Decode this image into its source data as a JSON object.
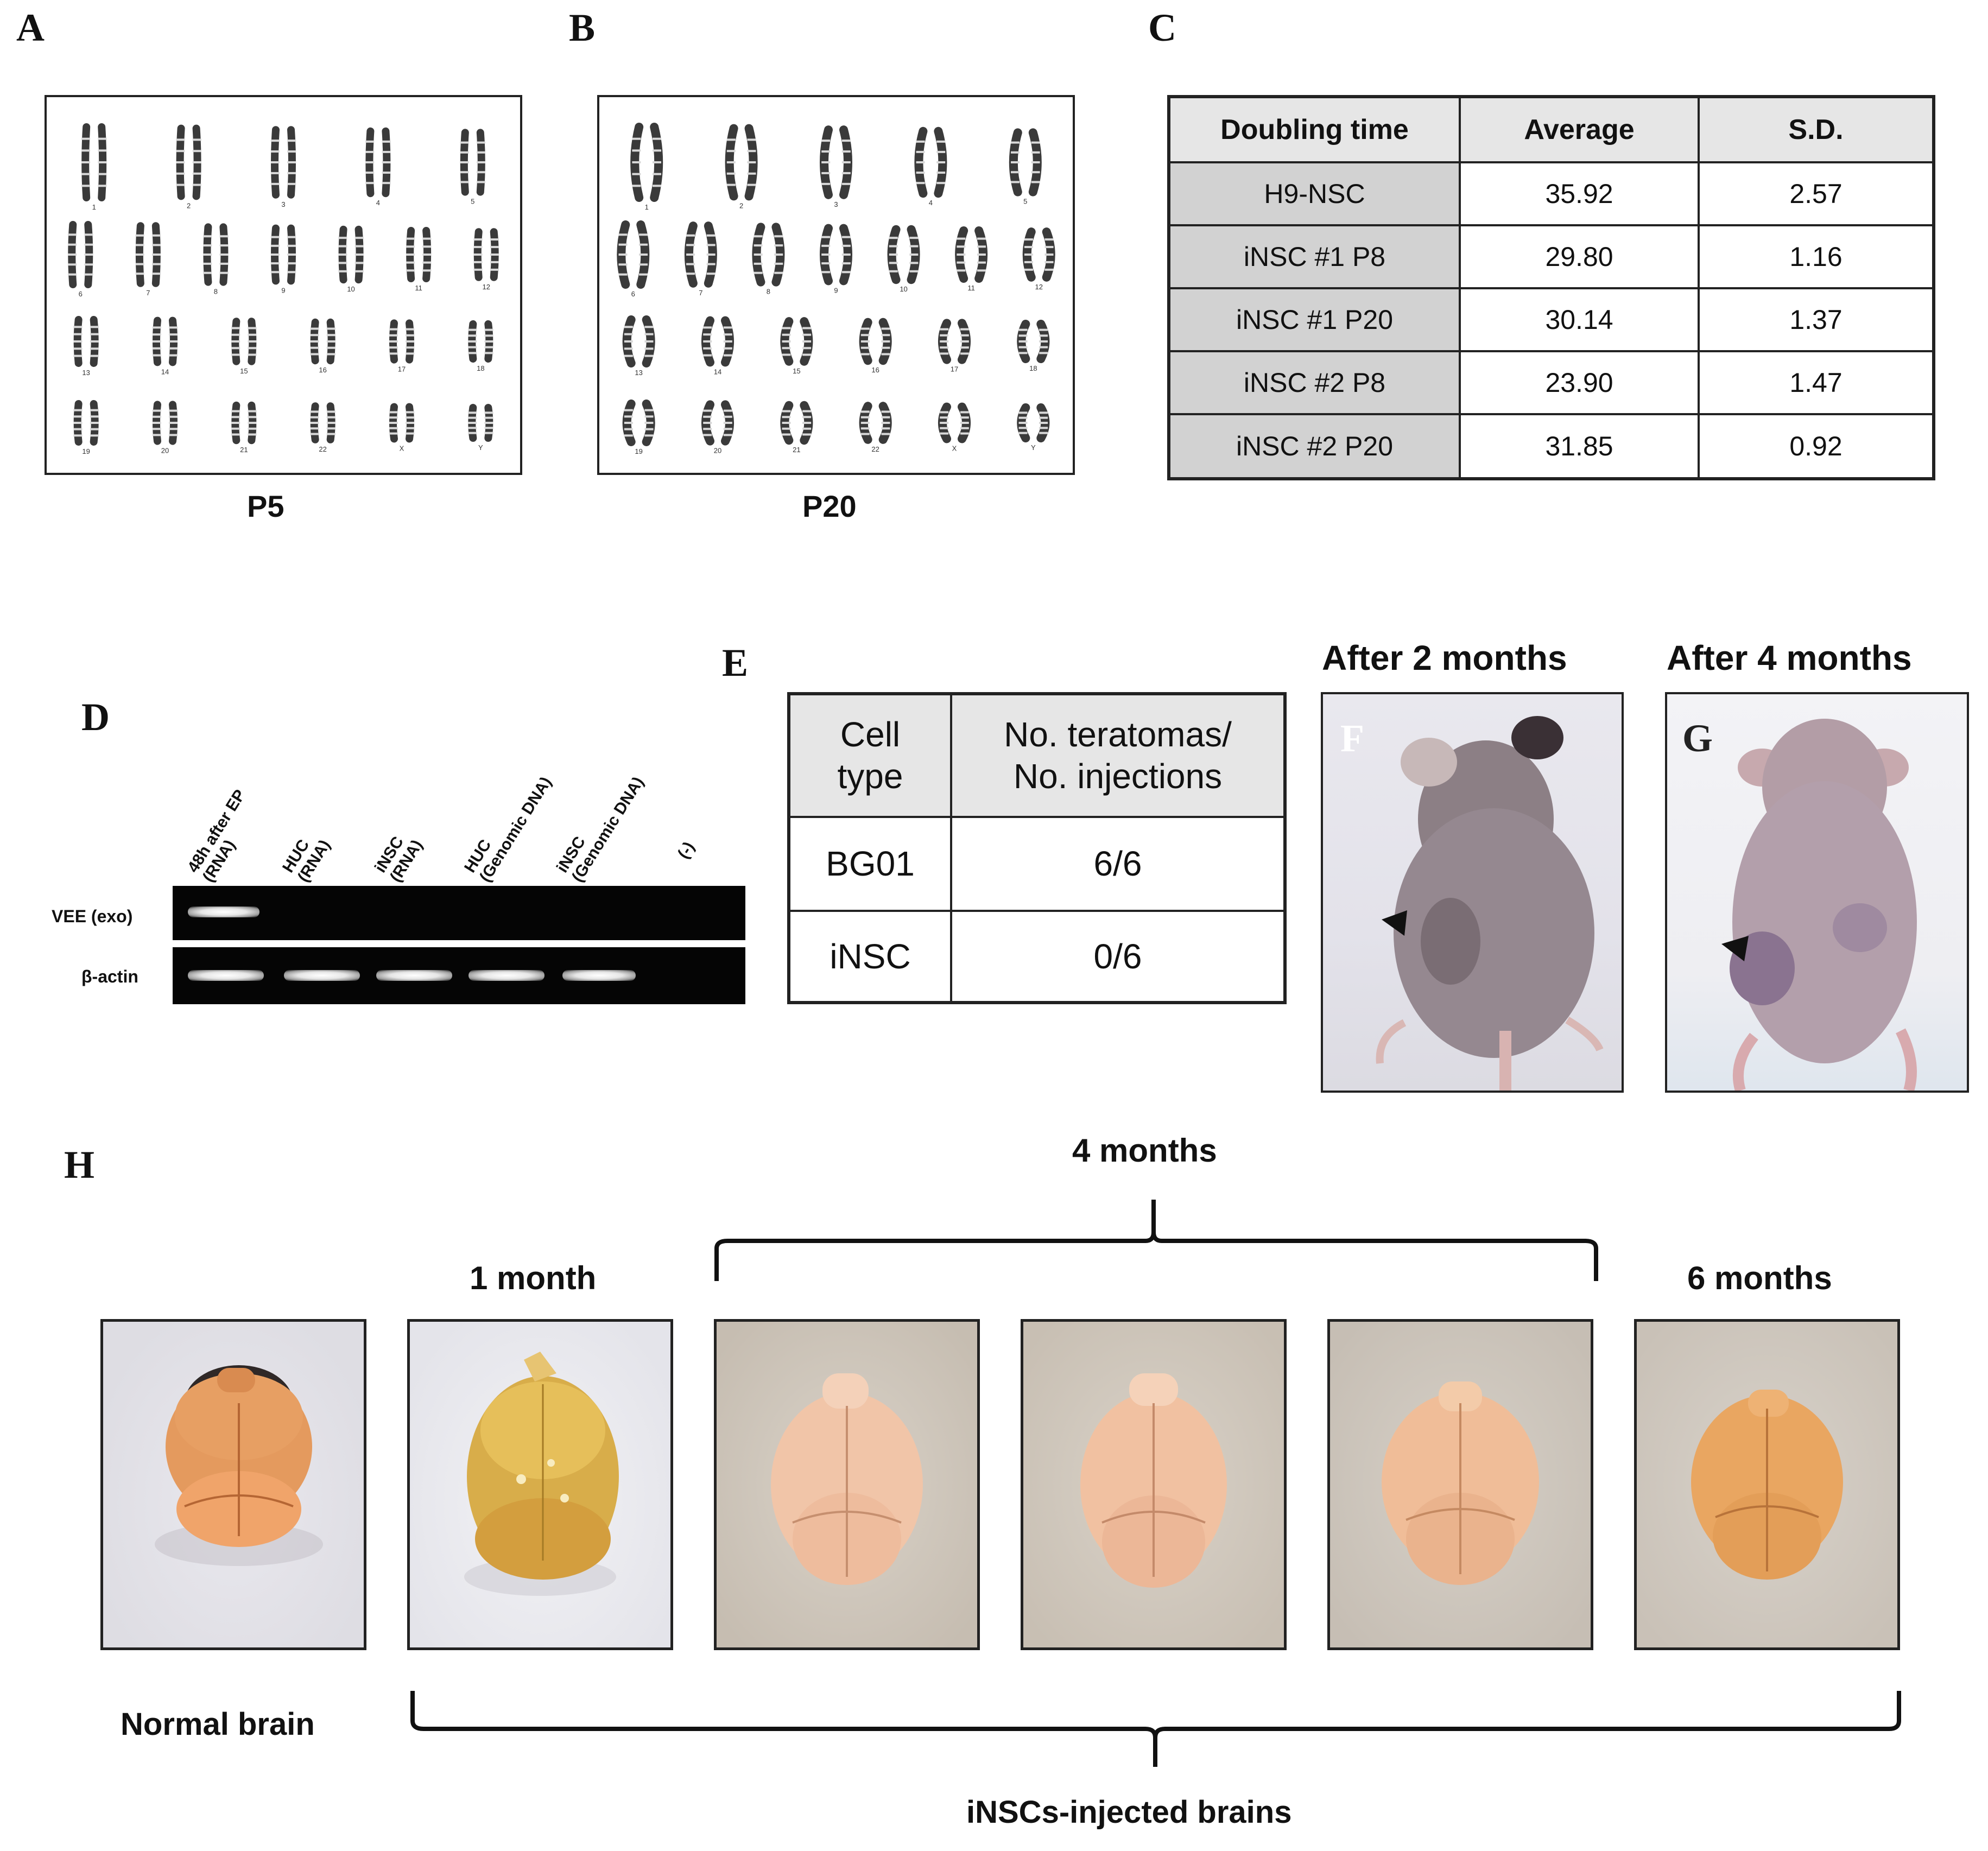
{
  "panels": {
    "A": "A",
    "B": "B",
    "C": "C",
    "D": "D",
    "E": "E",
    "F": "F",
    "G": "G",
    "H": "H"
  },
  "karyotype_a": {
    "caption": "P5",
    "rows": [
      [
        "1",
        "2",
        "3",
        "4",
        "5"
      ],
      [
        "6",
        "7",
        "8",
        "9",
        "10",
        "11",
        "12"
      ],
      [
        "13",
        "14",
        "15",
        "16",
        "17",
        "18"
      ],
      [
        "19",
        "20",
        "21",
        "22",
        "X",
        "Y"
      ]
    ]
  },
  "karyotype_b": {
    "caption": "P20",
    "rows": [
      [
        "1",
        "2",
        "3",
        "4",
        "5"
      ],
      [
        "6",
        "7",
        "8",
        "9",
        "10",
        "11",
        "12"
      ],
      [
        "13",
        "14",
        "15",
        "16",
        "17",
        "18"
      ],
      [
        "19",
        "20",
        "21",
        "22",
        "X",
        "Y"
      ]
    ]
  },
  "doubling_table": {
    "headers": [
      "Doubling time",
      "Average",
      "S.D."
    ],
    "rows": [
      [
        "H9-NSC",
        "35.92",
        "2.57"
      ],
      [
        "iNSC #1 P8",
        "29.80",
        "1.16"
      ],
      [
        "iNSC #1 P20",
        "30.14",
        "1.37"
      ],
      [
        "iNSC #2 P8",
        "23.90",
        "1.47"
      ],
      [
        "iNSC #2 P20",
        "31.85",
        "0.92"
      ]
    ]
  },
  "gel": {
    "lanes": [
      "48h after EP\n(RNA)",
      "HUC\n(RNA)",
      "iNSC\n(RNA)",
      "HUC\n(Genomic DNA)",
      "iNSC\n(Genomic DNA)",
      "(-)"
    ],
    "row_labels": [
      "VEE (exo)",
      "β-actin"
    ],
    "vee_bands": [
      true,
      false,
      false,
      false,
      false,
      false
    ],
    "actin_bands": [
      true,
      true,
      true,
      true,
      true,
      false
    ]
  },
  "teratoma_table": {
    "header_celltype": "Cell\ntype",
    "header_ratio": "No. teratomas/\nNo. injections",
    "rows": [
      [
        "BG01",
        "6/6"
      ],
      [
        "iNSC",
        "0/6"
      ]
    ]
  },
  "mouse_f": {
    "title": "After 2 months"
  },
  "mouse_g": {
    "title": "After 4 months"
  },
  "brains": {
    "label_4months": "4 months",
    "label_1month": "1 month",
    "label_6months": "6 months",
    "label_normal": "Normal brain",
    "label_injected": "iNSCs-injected  brains"
  },
  "colors": {
    "gel_bg": "#050505",
    "table_header": "#e6e6e6",
    "table_rowhead": "#d2d2d2"
  }
}
